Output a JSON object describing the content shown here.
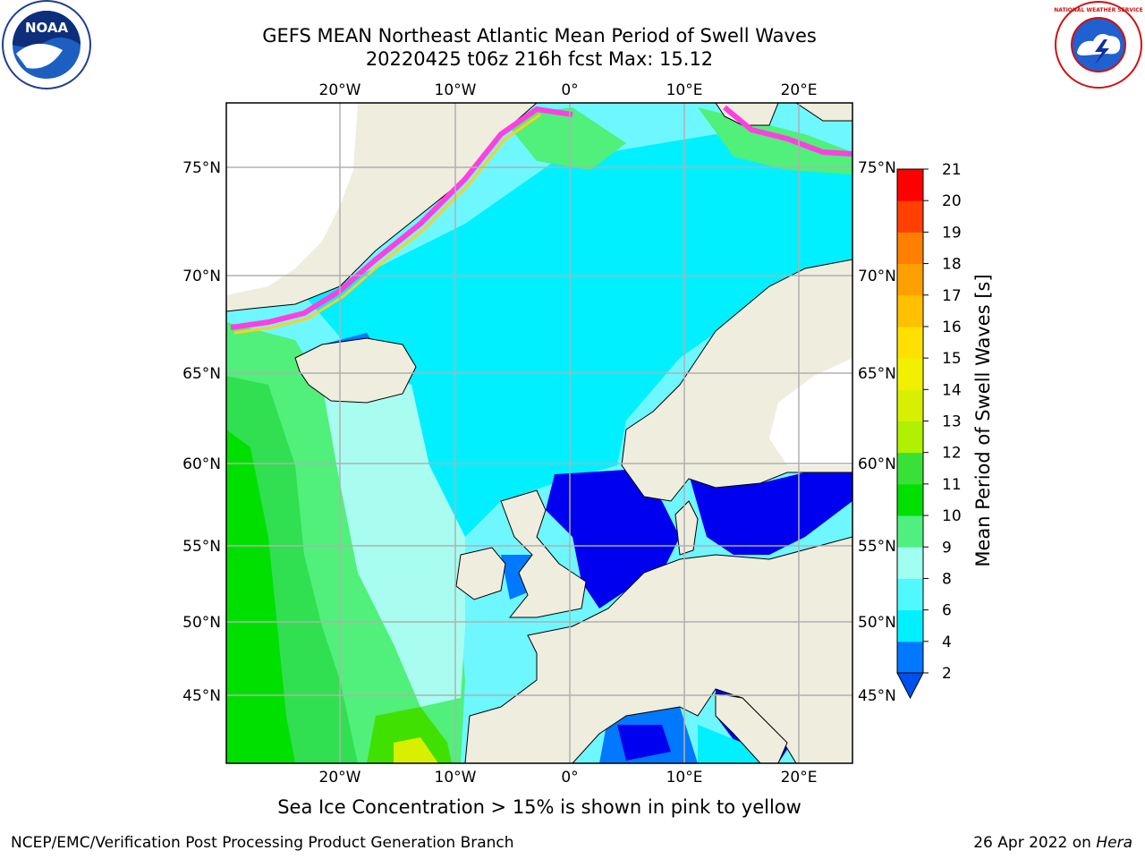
{
  "title": {
    "line1": "GEFS MEAN Northeast Atlantic Mean Period of Swell Waves",
    "line2": "20220425 t06z 216h fcst   Max: 15.12"
  },
  "logos": {
    "left": {
      "name": "noaa-logo",
      "text": "NOAA"
    },
    "right": {
      "name": "national-weather-service-logo",
      "text": "NATIONAL WEATHER SERVICE"
    }
  },
  "map": {
    "lon_ticks_top": [
      "20°W",
      "10°W",
      "0°",
      "10°E",
      "20°E"
    ],
    "lon_ticks_bottom": [
      "20°W",
      "10°W",
      "0°",
      "10°E",
      "20°E"
    ],
    "lat_ticks_left": [
      "75°N",
      "70°N",
      "65°N",
      "60°N",
      "55°N",
      "50°N",
      "45°N"
    ],
    "lat_ticks_right": [
      "75°N",
      "70°N",
      "65°N",
      "60°N",
      "55°N",
      "50°N",
      "45°N"
    ],
    "colors": {
      "land": "#efedde",
      "ocean_cyan": "#00f0ff",
      "ocean_lightcyan": "#6ef7ff",
      "ocean_pale": "#a8fdf0",
      "ocean_green_light": "#50f07a",
      "ocean_green": "#00e000",
      "ocean_blue": "#0078ff",
      "ocean_darkblue": "#0000f0",
      "sea_ice": "#ff40e0",
      "sea_ice_yellow": "#ffd020",
      "grid": "#b0b0b0",
      "coast": "#000000"
    }
  },
  "colorbar": {
    "label": "Mean Period of Swell Waves [s]",
    "ticks": [
      "2",
      "4",
      "6",
      "8",
      "9",
      "10",
      "11",
      "12",
      "13",
      "14",
      "15",
      "16",
      "17",
      "18",
      "19",
      "20",
      "21"
    ],
    "colors": [
      "#0050f0",
      "#0078ff",
      "#00f0ff",
      "#50f8ff",
      "#a0fff0",
      "#50f080",
      "#00e000",
      "#38e038",
      "#b0f000",
      "#d8f000",
      "#f0f000",
      "#ffe000",
      "#ffc000",
      "#ffa000",
      "#ff8000",
      "#ff4000",
      "#ff0000"
    ]
  },
  "note": "Sea Ice Concentration > 15% is shown in pink to yellow",
  "footer": {
    "left": "NCEP/EMC/Verification Post Processing Product Generation Branch",
    "right_prefix": "26 Apr 2022 on ",
    "right_italic": "Hera"
  }
}
